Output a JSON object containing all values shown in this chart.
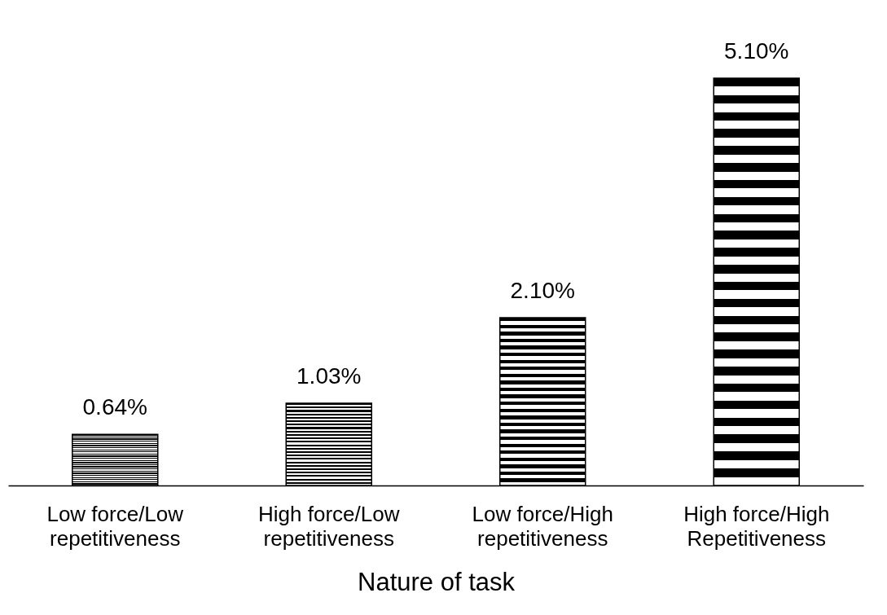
{
  "chart_data": {
    "type": "bar",
    "xlabel": "Nature of task",
    "categories": [
      "Low force/Low repetitiveness",
      "High force/Low repetitiveness",
      "Low force/High repetitiveness",
      "High force/High Repetitiveness"
    ],
    "values": [
      0.64,
      1.03,
      2.1,
      5.1
    ],
    "value_labels": [
      "0.64%",
      "1.03%",
      "2.10%",
      "5.10%"
    ],
    "color": "#000000",
    "grid": false
  }
}
